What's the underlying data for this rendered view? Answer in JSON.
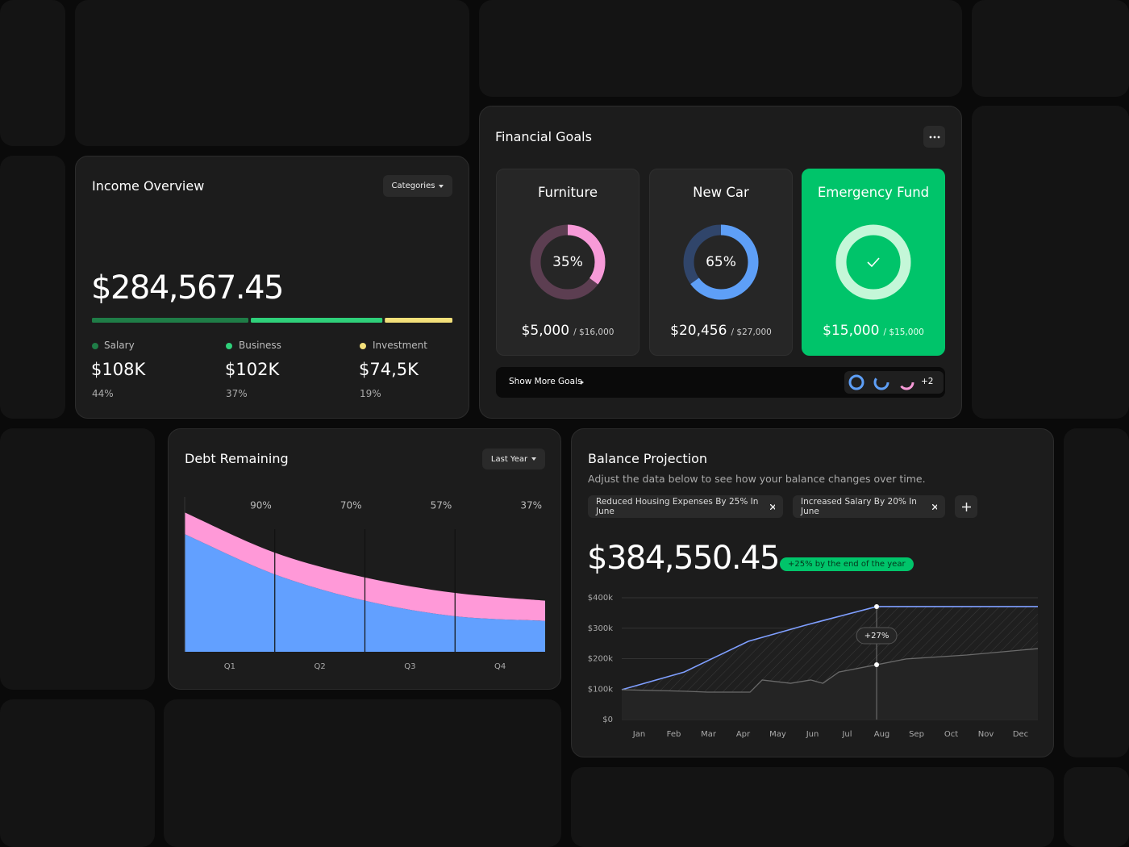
{
  "income_overview": {
    "title": "Income Overview",
    "filter": "Categories",
    "total": "$284,567.45",
    "items": [
      {
        "name": "Salary",
        "amount": "$108K",
        "share": {
          "value": 44,
          "label": "44%"
        },
        "color": "#1f7d47"
      },
      {
        "name": "Business",
        "amount": "$102K",
        "share": {
          "value": 37,
          "label": "37%"
        },
        "color": "#2fd07a"
      },
      {
        "name": "Investment",
        "amount": "$74,5K",
        "share": {
          "value": 19,
          "label": "19%"
        },
        "color": "#f3e07a"
      }
    ]
  },
  "financial_goals": {
    "title": "Financial Goals",
    "goals": [
      {
        "name": "Furniture",
        "progress": {
          "value": 35,
          "label": "35%"
        },
        "saved": "$5,000",
        "target": "/ $16,000",
        "color": "#f79ad8",
        "track": "#5c3e51"
      },
      {
        "name": "New Car",
        "progress": {
          "value": 65,
          "label": "65%"
        },
        "saved": "$20,456",
        "target": "/ $27,000",
        "color": "#5e9ff7",
        "track": "#30456a"
      },
      {
        "name": "Emergency Fund",
        "progress": 100,
        "saved": "$15,000",
        "target": "/ $15,000",
        "color": "#c4f7d8",
        "track": "#3ad884"
      }
    ],
    "footer": {
      "link": "Show More Goals",
      "more": "+2"
    }
  },
  "debt_remaining": {
    "type": "area",
    "title": "Debt Remaining",
    "filter": "Last Year",
    "categories": [
      "Q1",
      "Q2",
      "Q3",
      "Q4"
    ],
    "annotations": [
      "90%",
      "70%",
      "57%",
      "37%"
    ],
    "x": [
      0,
      1,
      2,
      3,
      4
    ],
    "xlim": [
      0,
      4
    ],
    "ylim": [
      0,
      100
    ],
    "series": [
      {
        "color": "#62a0ff",
        "values": [
          76,
          50,
          33,
          23,
          20
        ]
      },
      {
        "color": "#ff99d8",
        "values": [
          14,
          14,
          15,
          15,
          13
        ]
      }
    ]
  },
  "balance_projection": {
    "type": "line",
    "title": "Balance Projection",
    "subtitle": "Adjust the data below to see how your balance changes over time.",
    "scenarios": [
      "Reduced Housing Expenses By 25% In June",
      "Increased Salary By 20% In June"
    ],
    "total": "$384,550.45",
    "badge": "+25% by the end of the year",
    "categories": [
      "Jan",
      "Feb",
      "Mar",
      "Apr",
      "May",
      "Jun",
      "Jul",
      "Aug",
      "Sep",
      "Oct",
      "Nov",
      "Dec"
    ],
    "xlim": [
      0,
      12
    ],
    "ylim": [
      0,
      400
    ],
    "yticks": [
      {
        "value": 0,
        "label": "$0"
      },
      {
        "value": 100,
        "label": "$100k"
      },
      {
        "value": 200,
        "label": "$200k"
      },
      {
        "value": 300,
        "label": "$300k"
      },
      {
        "value": 400,
        "label": "$400k"
      }
    ],
    "series": [
      {
        "color": "#7f9fff",
        "x": [
          0,
          1.8,
          3.65,
          5.3,
          7.35,
          12
        ],
        "values": [
          98,
          156,
          257,
          310,
          371,
          371
        ]
      },
      {
        "color": "#6a6a6a",
        "x": [
          0,
          1.8,
          2.47,
          3.7,
          4.05,
          4.87,
          5.45,
          5.8,
          6.26,
          7.35,
          8.2,
          9.95,
          12
        ],
        "values": [
          98,
          93,
          90,
          90,
          130,
          119,
          130,
          119,
          156,
          180,
          199,
          212,
          233
        ]
      }
    ],
    "annotation": {
      "text": "+27%",
      "x": 7.35
    }
  }
}
